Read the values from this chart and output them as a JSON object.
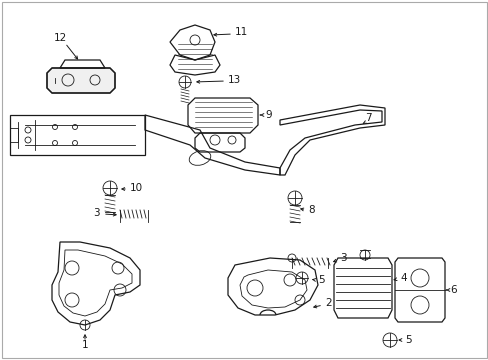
{
  "background_color": "#ffffff",
  "line_color": "#1a1a1a",
  "border_color": "#cccccc",
  "fig_width": 4.89,
  "fig_height": 3.6,
  "dpi": 100,
  "lw": 0.9,
  "lw_thin": 0.6,
  "fontsize": 7.5
}
